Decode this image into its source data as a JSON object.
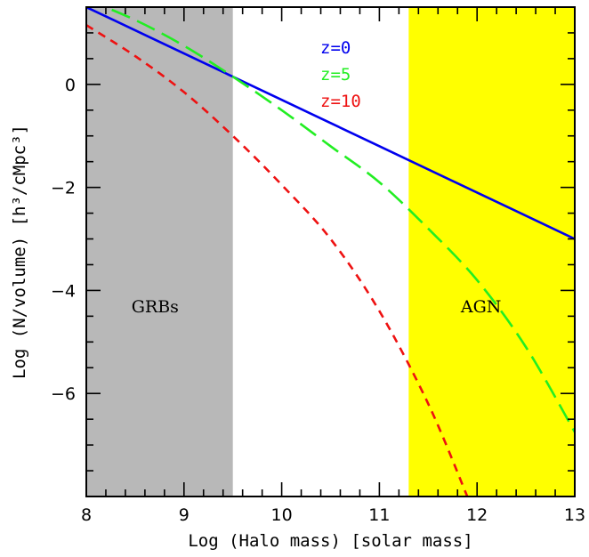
{
  "chart_data": {
    "type": "line",
    "xlabel": "Log (Halo mass) [solar mass]",
    "ylabel": "Log (N/volume) [h³/cMpc³]",
    "xlim": [
      8,
      13
    ],
    "ylim": [
      -8,
      1.5
    ],
    "x_ticks": [
      "8",
      "9",
      "10",
      "11",
      "12",
      "13"
    ],
    "y_ticks": [
      "0",
      "−2",
      "−4",
      "−6"
    ],
    "grid": false,
    "legend_position": "top-center",
    "regions": [
      {
        "label": "GRBs",
        "x_range": [
          8,
          9.5
        ],
        "color": "#b8b8b8"
      },
      {
        "label": "AGN",
        "x_range": [
          11.3,
          13
        ],
        "color": "#ffff00"
      }
    ],
    "series": [
      {
        "name": "z=0",
        "color": "#0000ee",
        "style": "solid",
        "x": [
          8,
          9,
          10,
          11,
          12,
          13
        ],
        "y": [
          1.5,
          0.6,
          -0.3,
          -1.2,
          -2.1,
          -3.0
        ]
      },
      {
        "name": "z=5",
        "color": "#22ee22",
        "style": "long-dash",
        "x": [
          8,
          8.5,
          9,
          9.5,
          10,
          10.5,
          11,
          11.5,
          12,
          12.5,
          13
        ],
        "y": [
          1.65,
          1.25,
          0.75,
          0.15,
          -0.5,
          -1.2,
          -1.9,
          -2.8,
          -3.8,
          -5.1,
          -6.75
        ]
      },
      {
        "name": "z=10",
        "color": "#ee1111",
        "style": "short-dash",
        "x": [
          8,
          8.5,
          9,
          9.5,
          10,
          10.5,
          11,
          11.5,
          11.9
        ],
        "y": [
          1.15,
          0.55,
          -0.15,
          -1.0,
          -1.95,
          -3.0,
          -4.4,
          -6.2,
          -8.0
        ]
      }
    ]
  }
}
